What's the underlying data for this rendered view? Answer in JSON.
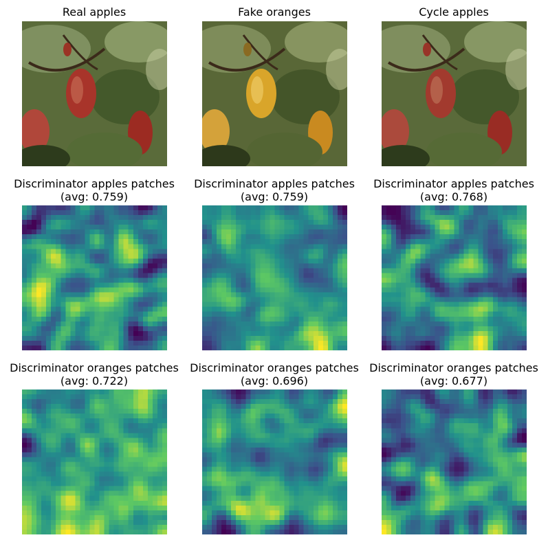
{
  "figure": {
    "row1": {
      "titles": [
        "Real apples",
        "Fake oranges",
        "Cycle apples"
      ]
    },
    "row2": {
      "titles": [
        "Discriminator apples patches\n(avg: 0.759)",
        "Discriminator apples patches\n(avg: 0.759)",
        "Discriminator apples patches\n(avg: 0.768)"
      ],
      "avg_values": [
        0.759,
        0.759,
        0.768
      ]
    },
    "row3": {
      "titles": [
        "Discriminator oranges patches\n(avg: 0.722)",
        "Discriminator oranges patches\n(avg: 0.696)",
        "Discriminator oranges patches\n(avg: 0.677)"
      ],
      "avg_values": [
        0.722,
        0.696,
        0.677
      ]
    },
    "colormap": "viridis",
    "colors": {
      "viridis_low": "#440154",
      "viridis_mid": "#21918c",
      "viridis_high": "#fde725",
      "apple_red": "#a8342a",
      "orange_yellow": "#d9a52a",
      "leaf_green": "#4f6a34"
    }
  }
}
